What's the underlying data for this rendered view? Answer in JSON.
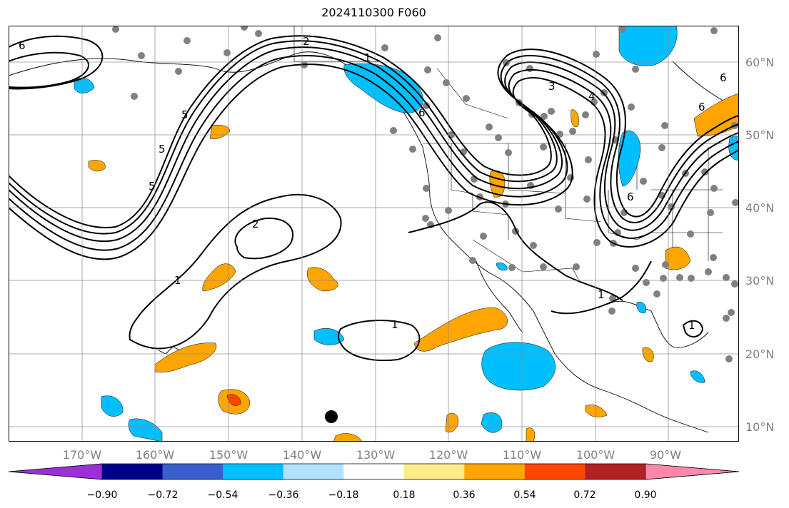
{
  "title": "2024110300 F060",
  "lon_labels": [
    "170°W",
    "160°W",
    "150°W",
    "140°W",
    "130°W",
    "120°W",
    "110°W",
    "100°W",
    "90°W"
  ],
  "lat_labels": [
    "60°N",
    "50°N",
    "40°N",
    "30°N",
    "20°N",
    "10°N"
  ],
  "colorbar": {
    "ticks": [
      "−0.90",
      "−0.72",
      "−0.54",
      "−0.36",
      "−0.18",
      "0.18",
      "0.36",
      "0.54",
      "0.72",
      "0.90"
    ],
    "colors": [
      "#9b30d9",
      "#00008b",
      "#3a5fcd",
      "#00bfff",
      "#b2e2ff",
      "#ffffff",
      "#ffeb8a",
      "#ffa500",
      "#ff4500",
      "#b22222",
      "#ff88aa"
    ]
  },
  "contour_labels": [
    "6",
    "5",
    "2",
    "1",
    "6",
    "5",
    "3",
    "4",
    "6",
    "1",
    "1",
    "1",
    "6",
    "5",
    "6",
    "2",
    "1"
  ],
  "fill_colors": {
    "orange": "#ffa500",
    "light_yellow": "#ffeb8a",
    "blue": "#00bfff",
    "light_blue": "#b2e2ff",
    "red_orange": "#ff4500",
    "point_gray": "#808080"
  }
}
